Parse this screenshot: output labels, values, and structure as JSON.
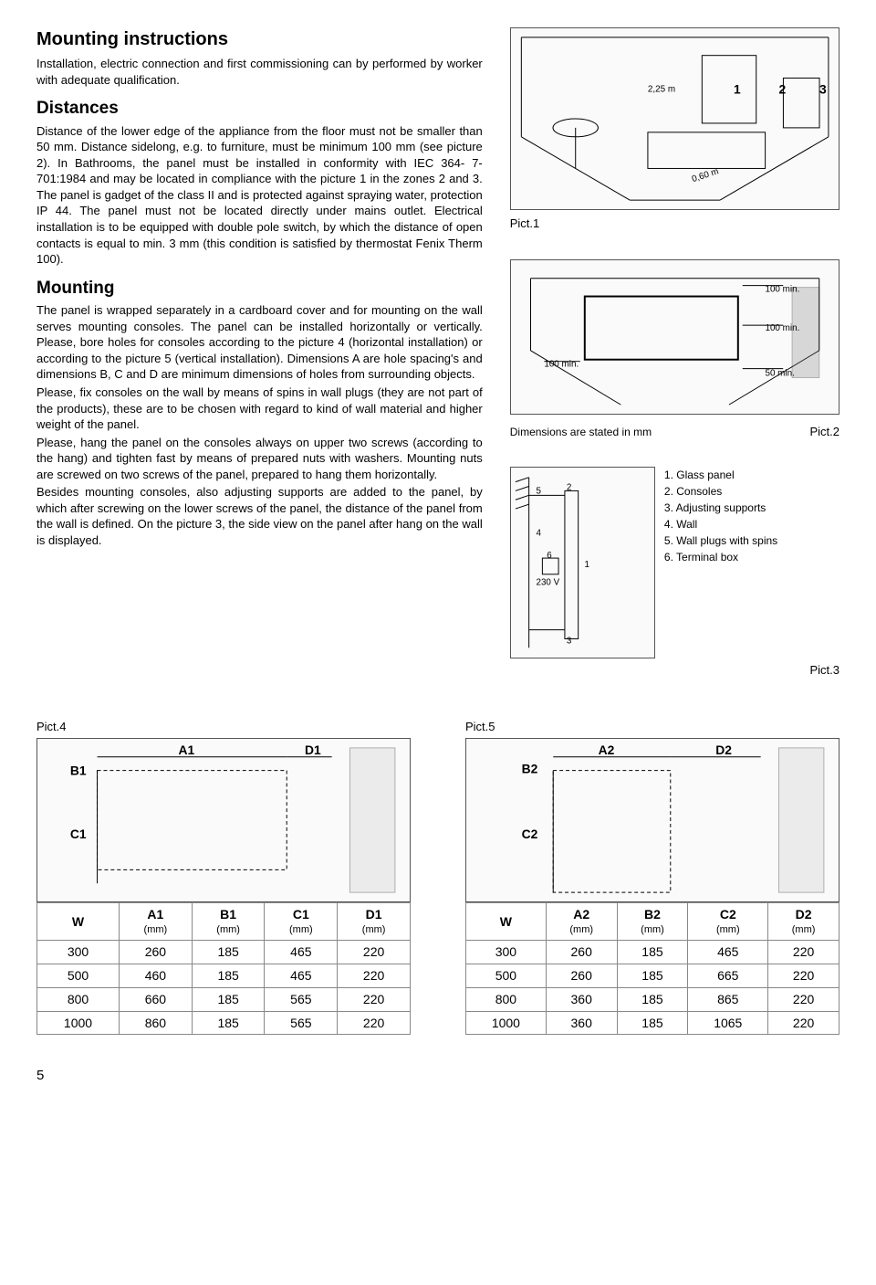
{
  "headings": {
    "title": "Mounting instructions",
    "distances": "Distances",
    "mounting": "Mounting"
  },
  "paragraphs": {
    "intro": "Installation, electric connection and first commissioning can by performed by worker with adequate qualification.",
    "distances": "Distance of the lower edge of the appliance from the floor must not be smaller than 50 mm. Distance sidelong, e.g. to furniture, must be minimum 100 mm (see picture 2). In Bathrooms, the panel must be installed in conformity with IEC 364- 7- 701:1984 and may be located in compliance with the picture 1 in the zones 2 and 3. The panel is gadget of the class II and is protected against spraying water, protection IP 44. The panel must not be located directly under mains outlet. Electrical installation is to be equipped with double pole switch, by which the distance of open contacts is equal to min. 3 mm (this condition is satisfied by thermostat Fenix Therm 100).",
    "mounting1": "The panel is wrapped separately in a cardboard cover and for mounting on the wall serves mounting consoles. The panel can be installed horizontally or vertically. Please, bore holes for consoles according to the picture 4 (horizontal installation) or according to the picture 5 (vertical installation). Dimensions A are hole spacing's and dimensions B, C and D are minimum dimensions of holes from surrounding objects.",
    "mounting2": "Please, fix consoles on the wall by means of spins in wall plugs (they are not part of the products), these are to be chosen with regard to kind of wall material and higher weight of the panel.",
    "mounting3": "Please, hang the panel on the consoles always on upper two screws (according to the hang) and tighten fast by means of prepared nuts with washers. Mounting nuts are screwed on two screws of the panel, prepared to hang them horizontally.",
    "mounting4": "Besides mounting consoles, also adjusting supports are added to the panel, by which after screwing on the lower screws of the panel, the distance of the panel from the wall is defined. On the picture 3, the side view  on the panel after hang on the wall is displayed."
  },
  "labels": {
    "pict1": "Pict.1",
    "pict2": "Pict.2",
    "pict3": "Pict.3",
    "pict4": "Pict.4",
    "pict5": "Pict.5",
    "dim_note": "Dimensions are stated in mm",
    "page_num": "5"
  },
  "pict1_annot": {
    "d225": "2,25 m",
    "d060": "0,60 m",
    "z1": "1",
    "z2": "2",
    "z3": "3"
  },
  "pict2_annot": {
    "top": "100 min.",
    "right": "100 min.",
    "left": "100 min.",
    "bottom": "50  min."
  },
  "pict3_annot": {
    "n1": "1",
    "n2": "2",
    "n3": "3",
    "n4": "4",
    "n5": "5",
    "n6": "6",
    "volt": "230 V"
  },
  "pict3_legend": [
    "1. Glass panel",
    "2. Consoles",
    "3. Adjusting supports",
    "4. Wall",
    "5. Wall plugs with spins",
    "6. Terminal box"
  ],
  "pict4_annot": {
    "A": "A1",
    "B": "B1",
    "C": "C1",
    "D": "D1"
  },
  "pict5_annot": {
    "A": "A2",
    "B": "B2",
    "C": "C2",
    "D": "D2"
  },
  "table4": {
    "headers": [
      "W",
      "A1",
      "B1",
      "C1",
      "D1"
    ],
    "unit": "(mm)",
    "rows": [
      [
        "300",
        "260",
        "185",
        "465",
        "220"
      ],
      [
        "500",
        "460",
        "185",
        "465",
        "220"
      ],
      [
        "800",
        "660",
        "185",
        "565",
        "220"
      ],
      [
        "1000",
        "860",
        "185",
        "565",
        "220"
      ]
    ]
  },
  "table5": {
    "headers": [
      "W",
      "A2",
      "B2",
      "C2",
      "D2"
    ],
    "unit": "(mm)",
    "rows": [
      [
        "300",
        "260",
        "185",
        "465",
        "220"
      ],
      [
        "500",
        "260",
        "185",
        "665",
        "220"
      ],
      [
        "800",
        "360",
        "185",
        "865",
        "220"
      ],
      [
        "1000",
        "360",
        "185",
        "1065",
        "220"
      ]
    ]
  },
  "colors": {
    "border": "#555555",
    "bg": "#ffffff",
    "tbl_border": "#888888",
    "text": "#000000"
  }
}
